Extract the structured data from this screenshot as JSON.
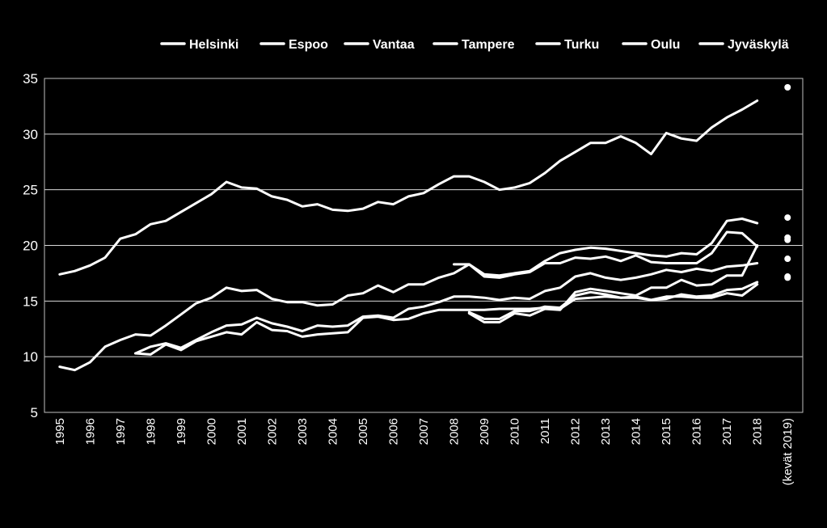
{
  "chart_data": {
    "type": "line",
    "title": "",
    "xlabel": "",
    "ylabel": "",
    "ylim": [
      5,
      35
    ],
    "yticks": [
      5,
      10,
      15,
      20,
      25,
      30,
      35
    ],
    "categories": [
      "1995",
      "1996",
      "1997",
      "1998",
      "1999",
      "2000",
      "2001",
      "2002",
      "2003",
      "2004",
      "2005",
      "2006",
      "2007",
      "2008",
      "2009",
      "2010",
      "2011",
      "2012",
      "2013",
      "2014",
      "2015",
      "2016",
      "2017",
      "2018",
      "(kevät 2019)"
    ],
    "grid": true,
    "legend_position": "top",
    "line_color": "#ffffff",
    "background": "#000000",
    "series": [
      {
        "name": "Helsinki",
        "values": [
          [
            0,
            17.4
          ],
          [
            0.5,
            17.7
          ],
          [
            1,
            18.2
          ],
          [
            1.5,
            18.9
          ],
          [
            2,
            20.6
          ],
          [
            2.5,
            21.0
          ],
          [
            3,
            21.9
          ],
          [
            3.5,
            22.2
          ],
          [
            4,
            23.0
          ],
          [
            4.5,
            23.8
          ],
          [
            5,
            24.6
          ],
          [
            5.5,
            25.7
          ],
          [
            6,
            25.2
          ],
          [
            6.5,
            25.1
          ],
          [
            7,
            24.4
          ],
          [
            7.5,
            24.1
          ],
          [
            8,
            23.5
          ],
          [
            8.5,
            23.7
          ],
          [
            9,
            23.2
          ],
          [
            9.5,
            23.1
          ],
          [
            10,
            23.3
          ],
          [
            10.5,
            23.9
          ],
          [
            11,
            23.7
          ],
          [
            11.5,
            24.4
          ],
          [
            12,
            24.7
          ],
          [
            12.5,
            25.5
          ],
          [
            13,
            26.2
          ],
          [
            13.5,
            26.2
          ],
          [
            14,
            25.7
          ],
          [
            14.5,
            25.0
          ],
          [
            15,
            25.2
          ],
          [
            15.5,
            25.6
          ],
          [
            16,
            26.5
          ],
          [
            16.5,
            27.6
          ],
          [
            17,
            28.4
          ],
          [
            17.5,
            29.2
          ],
          [
            18,
            29.2
          ],
          [
            18.5,
            29.8
          ],
          [
            19,
            29.2
          ],
          [
            19.5,
            28.2
          ],
          [
            20,
            30.1
          ],
          [
            20.5,
            29.6
          ],
          [
            21,
            29.4
          ],
          [
            21.5,
            30.6
          ],
          [
            22,
            31.5
          ],
          [
            22.5,
            32.2
          ],
          [
            23,
            33.0
          ]
        ],
        "spring_2019": 34.2
      },
      {
        "name": "Espoo",
        "values": [
          [
            0,
            9.1
          ],
          [
            0.5,
            8.8
          ],
          [
            1,
            9.5
          ],
          [
            1.5,
            10.9
          ],
          [
            2,
            11.5
          ],
          [
            2.5,
            12.0
          ],
          [
            3,
            11.9
          ],
          [
            3.5,
            12.8
          ],
          [
            4,
            13.8
          ],
          [
            4.5,
            14.8
          ],
          [
            5,
            15.3
          ],
          [
            5.5,
            16.2
          ],
          [
            6,
            15.9
          ],
          [
            6.5,
            16.0
          ],
          [
            7,
            15.2
          ],
          [
            7.5,
            14.9
          ],
          [
            8,
            14.9
          ],
          [
            8.5,
            14.6
          ],
          [
            9,
            14.7
          ],
          [
            9.5,
            15.5
          ],
          [
            10,
            15.7
          ],
          [
            10.5,
            16.4
          ],
          [
            11,
            15.8
          ],
          [
            11.5,
            16.5
          ],
          [
            12,
            16.5
          ],
          [
            12.5,
            17.1
          ],
          [
            13,
            17.5
          ],
          [
            13.5,
            18.3
          ],
          [
            14,
            17.4
          ],
          [
            14.5,
            17.3
          ],
          [
            15,
            17.5
          ],
          [
            15.5,
            17.7
          ],
          [
            16,
            18.6
          ],
          [
            16.5,
            19.3
          ],
          [
            17,
            19.6
          ],
          [
            17.5,
            19.8
          ],
          [
            18,
            19.7
          ],
          [
            18.5,
            19.5
          ],
          [
            19,
            19.3
          ],
          [
            19.5,
            19.1
          ],
          [
            20,
            19.0
          ],
          [
            20.5,
            19.3
          ],
          [
            21,
            19.2
          ],
          [
            21.5,
            20.2
          ],
          [
            22,
            22.2
          ],
          [
            22.5,
            22.4
          ],
          [
            23,
            22.0
          ]
        ],
        "spring_2019": 22.5
      },
      {
        "name": "Vantaa",
        "values": [
          [
            2.5,
            10.3
          ],
          [
            3,
            10.9
          ],
          [
            3.5,
            11.2
          ],
          [
            4,
            10.8
          ],
          [
            4.5,
            11.5
          ],
          [
            5,
            12.2
          ],
          [
            5.5,
            12.8
          ],
          [
            6,
            12.9
          ],
          [
            6.5,
            13.5
          ],
          [
            7,
            13.0
          ],
          [
            7.5,
            12.7
          ],
          [
            8,
            12.3
          ],
          [
            8.5,
            12.8
          ],
          [
            9,
            12.7
          ],
          [
            9.5,
            12.8
          ],
          [
            10,
            13.6
          ],
          [
            10.5,
            13.7
          ],
          [
            11,
            13.5
          ],
          [
            11.5,
            14.3
          ],
          [
            12,
            14.5
          ],
          [
            12.5,
            14.9
          ],
          [
            13,
            15.4
          ],
          [
            13.5,
            15.4
          ],
          [
            14,
            15.3
          ],
          [
            14.5,
            15.1
          ],
          [
            15,
            15.3
          ],
          [
            15.5,
            15.2
          ],
          [
            16,
            15.9
          ],
          [
            16.5,
            16.2
          ],
          [
            17,
            17.2
          ],
          [
            17.5,
            17.5
          ],
          [
            18,
            17.1
          ],
          [
            18.5,
            16.9
          ],
          [
            19,
            17.1
          ],
          [
            19.5,
            17.4
          ],
          [
            20,
            17.8
          ],
          [
            20.5,
            17.6
          ],
          [
            21,
            17.9
          ],
          [
            21.5,
            17.7
          ],
          [
            22,
            18.1
          ],
          [
            22.5,
            18.2
          ],
          [
            23,
            18.4
          ]
        ],
        "spring_2019": 18.8
      },
      {
        "name": "Tampere",
        "values": [
          [
            2.5,
            10.3
          ],
          [
            3,
            10.2
          ],
          [
            3.5,
            11.1
          ],
          [
            4,
            10.6
          ],
          [
            4.5,
            11.4
          ],
          [
            5,
            11.8
          ],
          [
            5.5,
            12.2
          ],
          [
            6,
            12.0
          ],
          [
            6.5,
            13.1
          ],
          [
            7,
            12.4
          ],
          [
            7.5,
            12.3
          ],
          [
            8,
            11.8
          ],
          [
            8.5,
            12.0
          ],
          [
            9,
            12.1
          ],
          [
            9.5,
            12.2
          ],
          [
            10,
            13.5
          ],
          [
            10.5,
            13.6
          ],
          [
            11,
            13.3
          ],
          [
            11.5,
            13.4
          ],
          [
            12,
            13.9
          ],
          [
            12.5,
            14.2
          ],
          [
            13,
            14.2
          ],
          [
            13.5,
            14.2
          ],
          [
            14,
            14.2
          ],
          [
            14.5,
            14.3
          ],
          [
            15,
            14.3
          ],
          [
            15.5,
            14.3
          ],
          [
            16,
            14.4
          ],
          [
            16.5,
            14.3
          ],
          [
            17,
            15.2
          ],
          [
            17.5,
            15.3
          ],
          [
            18,
            15.4
          ],
          [
            18.5,
            15.3
          ],
          [
            19,
            15.3
          ],
          [
            19.5,
            15.1
          ],
          [
            20,
            15.4
          ],
          [
            20.5,
            15.4
          ],
          [
            21,
            15.3
          ],
          [
            21.5,
            15.3
          ],
          [
            22,
            15.7
          ],
          [
            22.5,
            15.5
          ],
          [
            23,
            16.5
          ]
        ],
        "spring_2019": 17.1
      },
      {
        "name": "Turku",
        "values": [
          [
            13.5,
            14.0
          ],
          [
            14,
            13.4
          ],
          [
            14.5,
            13.4
          ],
          [
            15,
            14.1
          ],
          [
            15.5,
            14.1
          ],
          [
            16,
            14.5
          ],
          [
            16.5,
            14.4
          ],
          [
            17,
            15.5
          ],
          [
            17.5,
            15.8
          ],
          [
            18,
            15.6
          ],
          [
            18.5,
            15.3
          ],
          [
            19,
            15.4
          ],
          [
            19.5,
            15.1
          ],
          [
            20,
            15.2
          ],
          [
            20.5,
            15.6
          ],
          [
            21,
            15.4
          ],
          [
            21.5,
            15.5
          ],
          [
            22,
            16.0
          ],
          [
            22.5,
            16.1
          ],
          [
            23,
            16.7
          ]
        ],
        "spring_2019": 17.2
      },
      {
        "name": "Oulu",
        "values": [
          [
            13.5,
            13.9
          ],
          [
            14,
            13.1
          ],
          [
            14.5,
            13.1
          ],
          [
            15,
            13.9
          ],
          [
            15.5,
            13.7
          ],
          [
            16,
            14.3
          ],
          [
            16.5,
            14.2
          ],
          [
            17,
            15.8
          ],
          [
            17.5,
            16.1
          ],
          [
            18,
            15.9
          ],
          [
            18.5,
            15.7
          ],
          [
            19,
            15.5
          ],
          [
            19.5,
            16.2
          ],
          [
            20,
            16.2
          ],
          [
            20.5,
            16.9
          ],
          [
            21,
            16.4
          ],
          [
            21.5,
            16.5
          ],
          [
            22,
            17.3
          ],
          [
            22.5,
            17.3
          ],
          [
            23,
            20.0
          ]
        ],
        "spring_2019": 20.5
      },
      {
        "name": "Jyväskylä",
        "values": [
          [
            13,
            18.3
          ],
          [
            13.5,
            18.3
          ],
          [
            14,
            17.2
          ],
          [
            14.5,
            17.1
          ],
          [
            15,
            17.4
          ],
          [
            15.5,
            17.6
          ],
          [
            16,
            18.4
          ],
          [
            16.5,
            18.4
          ],
          [
            17,
            18.9
          ],
          [
            17.5,
            18.8
          ],
          [
            18,
            19.0
          ],
          [
            18.5,
            18.6
          ],
          [
            19,
            19.1
          ],
          [
            19.5,
            18.5
          ],
          [
            20,
            18.4
          ],
          [
            20.5,
            18.4
          ],
          [
            21,
            18.4
          ],
          [
            21.5,
            19.3
          ],
          [
            22,
            21.2
          ],
          [
            22.5,
            21.1
          ],
          [
            23,
            19.9
          ]
        ],
        "spring_2019": 20.7
      }
    ]
  }
}
